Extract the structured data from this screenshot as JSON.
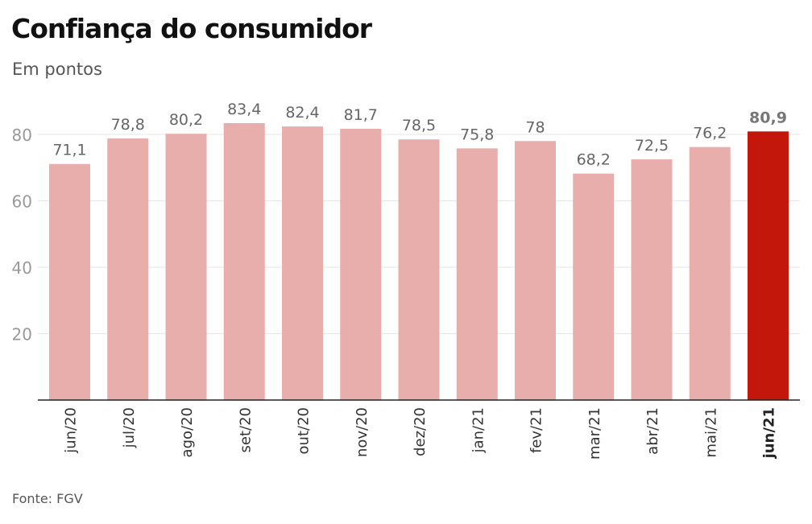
{
  "chart_data": {
    "type": "bar",
    "title": "Confiança do consumidor",
    "subtitle": "Em pontos",
    "source": "Fonte: FGV",
    "categories": [
      "jun/20",
      "jul/20",
      "ago/20",
      "set/20",
      "out/20",
      "nov/20",
      "dez/20",
      "jan/21",
      "fev/21",
      "mar/21",
      "abr/21",
      "mai/21",
      "jun/21"
    ],
    "values": [
      71.1,
      78.8,
      80.2,
      83.4,
      82.4,
      81.7,
      78.5,
      75.8,
      78,
      68.2,
      72.5,
      76.2,
      80.9
    ],
    "value_labels": [
      "71,1",
      "78,8",
      "80,2",
      "83,4",
      "82,4",
      "81,7",
      "78,5",
      "75,8",
      "78",
      "68,2",
      "72,5",
      "76,2",
      "80,9"
    ],
    "highlight_index": 12,
    "yticks": [
      20,
      40,
      60,
      80
    ],
    "ylim": [
      0,
      90
    ],
    "grid": true,
    "colors": {
      "bar": "#e8aeab",
      "highlight": "#c4170c",
      "grid": "#e6e6e6",
      "axis": "#222222"
    }
  }
}
